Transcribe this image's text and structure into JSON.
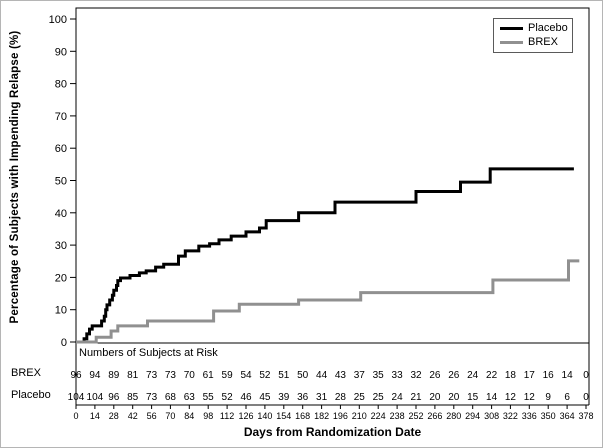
{
  "chart_data": {
    "type": "line",
    "subtype": "kaplan-meier-step",
    "title": "",
    "xlabel": "Days from Randomization Date",
    "ylabel": "Percentage of Subjects with Impending Relapse (%)",
    "xlim": [
      0,
      378
    ],
    "ylim": [
      0,
      100
    ],
    "grid": false,
    "legend_position": "top-right",
    "x_ticks": [
      0,
      14,
      28,
      42,
      56,
      70,
      84,
      98,
      112,
      126,
      140,
      154,
      168,
      182,
      196,
      210,
      224,
      238,
      252,
      266,
      280,
      294,
      308,
      322,
      336,
      350,
      364,
      378
    ],
    "y_ticks": [
      0,
      10,
      20,
      30,
      40,
      50,
      60,
      70,
      80,
      90,
      100
    ],
    "series": [
      {
        "name": "Placebo",
        "color": "#000000",
        "steps": [
          [
            0,
            0
          ],
          [
            6,
            1
          ],
          [
            8,
            2.5
          ],
          [
            10,
            4
          ],
          [
            12,
            5
          ],
          [
            19,
            6.5
          ],
          [
            21,
            8
          ],
          [
            22,
            10
          ],
          [
            23,
            11.5
          ],
          [
            25,
            13
          ],
          [
            27,
            14.5
          ],
          [
            28,
            16
          ],
          [
            30,
            17.5
          ],
          [
            31,
            19
          ],
          [
            33,
            19.8
          ],
          [
            40,
            20.6
          ],
          [
            47,
            21.4
          ],
          [
            52,
            22
          ],
          [
            59,
            23.2
          ],
          [
            65,
            24.1
          ],
          [
            76,
            26.6
          ],
          [
            81,
            28.2
          ],
          [
            91,
            29.7
          ],
          [
            99,
            30.4
          ],
          [
            106,
            31.6
          ],
          [
            115,
            32.8
          ],
          [
            126,
            34.1
          ],
          [
            136,
            35.3
          ],
          [
            141,
            37.6
          ],
          [
            165,
            40
          ],
          [
            192,
            43.3
          ],
          [
            252,
            46.6
          ],
          [
            285,
            49.5
          ],
          [
            307,
            53.6
          ]
        ],
        "end_day": 369
      },
      {
        "name": "BREX",
        "color": "#909090",
        "steps": [
          [
            0,
            0
          ],
          [
            15,
            1.5
          ],
          [
            26,
            3.4
          ],
          [
            31,
            5
          ],
          [
            53,
            6.5
          ],
          [
            102,
            9.6
          ],
          [
            121,
            11.7
          ],
          [
            165,
            13
          ],
          [
            211,
            15.3
          ],
          [
            309,
            19.2
          ],
          [
            365,
            25.1
          ]
        ],
        "end_day": 373
      }
    ],
    "at_risk": {
      "title": "Numbers of Subjects at Risk",
      "days": [
        0,
        14,
        28,
        42,
        56,
        70,
        84,
        98,
        112,
        126,
        140,
        154,
        168,
        182,
        196,
        210,
        224,
        238,
        252,
        266,
        280,
        294,
        308,
        322,
        336,
        350,
        364,
        378
      ],
      "rows": [
        {
          "label": "BREX",
          "counts": [
            96,
            94,
            89,
            81,
            73,
            73,
            70,
            61,
            59,
            54,
            52,
            51,
            50,
            44,
            43,
            37,
            35,
            33,
            32,
            26,
            26,
            24,
            22,
            18,
            17,
            16,
            14,
            0
          ]
        },
        {
          "label": "Placebo",
          "counts": [
            104,
            104,
            96,
            85,
            73,
            68,
            63,
            55,
            52,
            46,
            45,
            39,
            36,
            31,
            28,
            25,
            25,
            24,
            21,
            20,
            20,
            15,
            14,
            12,
            12,
            9,
            6,
            0
          ]
        }
      ]
    }
  }
}
